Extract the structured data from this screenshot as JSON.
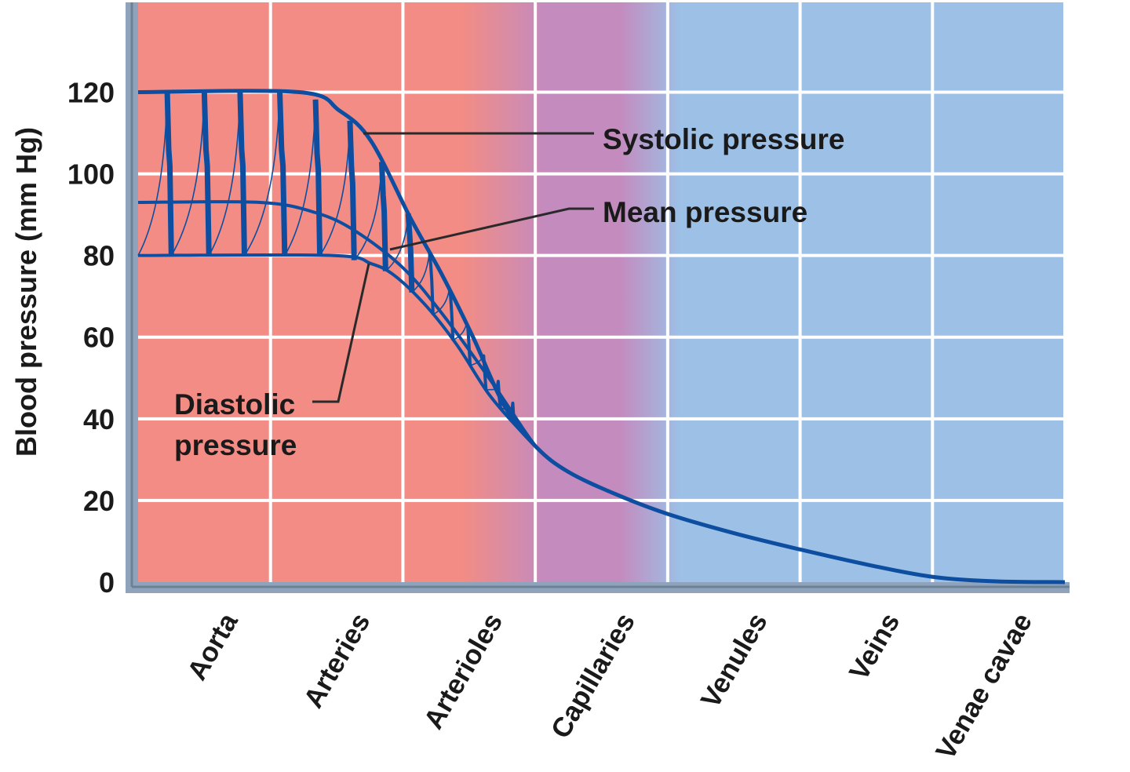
{
  "chart_data": {
    "type": "line",
    "title": "",
    "xlabel": "",
    "ylabel": "Blood pressure (mm Hg)",
    "ylim": [
      0,
      142
    ],
    "yticks": [
      "0",
      "20",
      "40",
      "60",
      "80",
      "100",
      "120"
    ],
    "ytick_values": [
      0,
      20,
      40,
      60,
      80,
      100,
      120
    ],
    "categories": [
      "Aorta",
      "Arteries",
      "Arterioles",
      "Capillaries",
      "Venules",
      "Veins",
      "Venae cavae"
    ],
    "xlim": [
      0,
      7
    ],
    "grid": true,
    "background_colors": {
      "arterial": "#f28c84",
      "capillary": "#c48bbf",
      "venous": "#9cc0e6"
    },
    "line_color": "#0d4ea0",
    "series": [
      {
        "name": "Systolic pressure",
        "points": [
          [
            0,
            120
          ],
          [
            1.22,
            120
          ],
          [
            1.52,
            115.5
          ],
          [
            1.76,
            108
          ],
          [
            2.06,
            89
          ],
          [
            2.3,
            75
          ],
          [
            2.53,
            60
          ],
          [
            2.77,
            43
          ],
          [
            3.01,
            33
          ],
          [
            3.25,
            27
          ],
          [
            3.61,
            21.5
          ],
          [
            4,
            16.7
          ],
          [
            4.5,
            12
          ],
          [
            5,
            8
          ],
          [
            5.52,
            4.2
          ],
          [
            6,
            1.3
          ],
          [
            6.48,
            0.2
          ],
          [
            7,
            0
          ]
        ]
      },
      {
        "name": "Mean pressure",
        "points": [
          [
            0,
            93
          ],
          [
            0.92,
            93
          ],
          [
            1.34,
            90.5
          ],
          [
            1.64,
            86
          ],
          [
            2.0,
            77
          ],
          [
            2.3,
            65.6
          ],
          [
            2.65,
            50
          ],
          [
            2.92,
            37
          ],
          [
            3.01,
            33
          ]
        ]
      },
      {
        "name": "Diastolic pressure",
        "points": [
          [
            0,
            80
          ],
          [
            1.46,
            80
          ],
          [
            1.76,
            78
          ],
          [
            1.94,
            75
          ],
          [
            2.18,
            67.5
          ],
          [
            2.41,
            58
          ],
          [
            2.65,
            46
          ],
          [
            2.89,
            37
          ],
          [
            3.01,
            33
          ]
        ]
      }
    ],
    "pulse_peaks": [
      0.22,
      0.5,
      0.77,
      1.07,
      1.34,
      1.6,
      1.84,
      2.04,
      2.2,
      2.35,
      2.48,
      2.6,
      2.71,
      2.82
    ],
    "annotations": {
      "systolic": "Systolic pressure",
      "mean": "Mean pressure",
      "diastolic_line1": "Diastolic",
      "diastolic_line2": "pressure"
    }
  }
}
